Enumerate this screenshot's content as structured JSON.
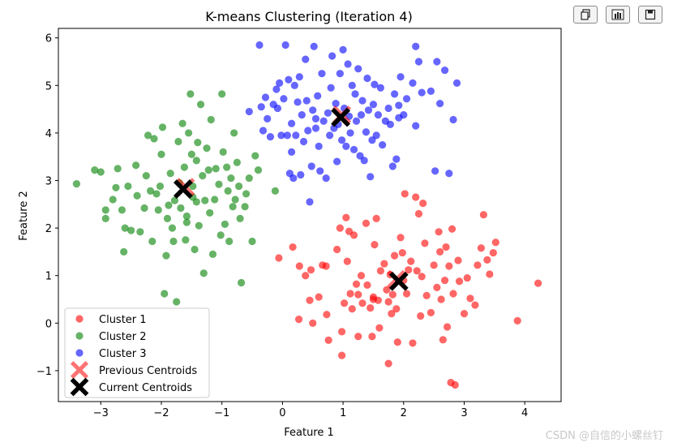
{
  "toolbar": {
    "buttons": [
      {
        "name": "copy-button",
        "icon": "copy-icon"
      },
      {
        "name": "data-button",
        "icon": "bar-chart-icon"
      },
      {
        "name": "save-button",
        "icon": "save-icon"
      }
    ]
  },
  "watermark": "CSDN @自信的小螺丝钉",
  "chart_data": {
    "type": "scatter",
    "title": "K-means Clustering (Iteration 4)",
    "xlabel": "Feature 1",
    "ylabel": "Feature 2",
    "xlim": [
      -3.7,
      4.6
    ],
    "ylim": [
      -1.65,
      6.2
    ],
    "xticks": [
      -3,
      -2,
      -1,
      0,
      1,
      2,
      3,
      4
    ],
    "yticks": [
      -1,
      0,
      1,
      2,
      3,
      4,
      5,
      6
    ],
    "grid": false,
    "legend_position": "lower-left",
    "series": [
      {
        "name": "Cluster 1",
        "color": "#ff0000",
        "marker": "circle",
        "points": [
          [
            -0.06,
            1.37
          ],
          [
            0.17,
            1.6
          ],
          [
            0.28,
            1.2
          ],
          [
            0.27,
            0.08
          ],
          [
            0.38,
            1.0
          ],
          [
            0.45,
            0.48
          ],
          [
            0.47,
            1.12
          ],
          [
            0.6,
            0.55
          ],
          [
            0.66,
            1.22
          ],
          [
            0.72,
            1.2
          ],
          [
            0.73,
            0.18
          ],
          [
            0.76,
            -0.36
          ],
          [
            0.9,
            1.55
          ],
          [
            0.95,
            2.0
          ],
          [
            0.98,
            -0.18
          ],
          [
            0.98,
            -0.68
          ],
          [
            1.02,
            0.42
          ],
          [
            1.05,
            2.22
          ],
          [
            1.07,
            1.3
          ],
          [
            1.1,
            1.93
          ],
          [
            1.12,
            0.62
          ],
          [
            1.15,
            0.3
          ],
          [
            1.18,
            1.85
          ],
          [
            1.22,
            0.82
          ],
          [
            1.25,
            0.6
          ],
          [
            1.25,
            -0.28
          ],
          [
            1.3,
            1.0
          ],
          [
            1.32,
            0.42
          ],
          [
            1.38,
            2.1
          ],
          [
            1.4,
            0.8
          ],
          [
            1.45,
            0.32
          ],
          [
            1.48,
            -0.28
          ],
          [
            1.5,
            0.55
          ],
          [
            1.52,
            1.65
          ],
          [
            1.55,
            2.2
          ],
          [
            1.58,
            0.48
          ],
          [
            1.6,
            -0.1
          ],
          [
            1.62,
            1.1
          ],
          [
            1.68,
            1.25
          ],
          [
            1.72,
            0.7
          ],
          [
            1.75,
            0.45
          ],
          [
            1.78,
            1.02
          ],
          [
            1.8,
            0.2
          ],
          [
            1.82,
            0.6
          ],
          [
            1.85,
            1.42
          ],
          [
            1.88,
            0.3
          ],
          [
            1.9,
            -0.4
          ],
          [
            1.95,
            1.8
          ],
          [
            1.98,
            1.48
          ],
          [
            2.0,
            0.9
          ],
          [
            2.02,
            2.72
          ],
          [
            2.05,
            0.62
          ],
          [
            2.08,
            1.12
          ],
          [
            2.12,
            1.3
          ],
          [
            2.15,
            -0.42
          ],
          [
            2.2,
            2.65
          ],
          [
            2.22,
            1.1
          ],
          [
            2.25,
            2.3
          ],
          [
            2.28,
            0.15
          ],
          [
            2.3,
            0.98
          ],
          [
            2.32,
            2.52
          ],
          [
            2.35,
            1.68
          ],
          [
            2.38,
            0.58
          ],
          [
            2.45,
            0.22
          ],
          [
            2.5,
            1.22
          ],
          [
            2.55,
            0.75
          ],
          [
            2.58,
            1.92
          ],
          [
            2.6,
            1.5
          ],
          [
            2.62,
            0.5
          ],
          [
            2.65,
            -0.35
          ],
          [
            2.68,
            0.9
          ],
          [
            2.7,
            1.6
          ],
          [
            2.72,
            -0.08
          ],
          [
            2.75,
            1.2
          ],
          [
            2.78,
            -1.25
          ],
          [
            2.8,
            1.98
          ],
          [
            2.82,
            0.62
          ],
          [
            2.85,
            -1.3
          ],
          [
            2.9,
            1.32
          ],
          [
            2.92,
            0.88
          ],
          [
            3.0,
            0.2
          ],
          [
            3.05,
            0.95
          ],
          [
            3.1,
            0.52
          ],
          [
            3.18,
            0.38
          ],
          [
            3.22,
            1.22
          ],
          [
            3.28,
            1.58
          ],
          [
            3.32,
            2.28
          ],
          [
            3.38,
            1.33
          ],
          [
            3.42,
            1.03
          ],
          [
            3.48,
            1.48
          ],
          [
            3.52,
            1.7
          ],
          [
            3.88,
            0.05
          ],
          [
            4.22,
            0.84
          ],
          [
            1.5,
            0.5
          ],
          [
            1.75,
            -0.85
          ],
          [
            0.5,
            0.0
          ]
        ]
      },
      {
        "name": "Cluster 2",
        "color": "#008000",
        "marker": "circle",
        "points": [
          [
            -3.4,
            2.93
          ],
          [
            -3.1,
            3.22
          ],
          [
            -3.0,
            3.18
          ],
          [
            -2.92,
            2.2
          ],
          [
            -2.92,
            2.38
          ],
          [
            -2.8,
            2.6
          ],
          [
            -2.75,
            2.85
          ],
          [
            -2.72,
            3.25
          ],
          [
            -2.65,
            2.38
          ],
          [
            -2.62,
            1.5
          ],
          [
            -2.55,
            2.88
          ],
          [
            -2.5,
            1.95
          ],
          [
            -2.42,
            3.32
          ],
          [
            -2.4,
            2.68
          ],
          [
            -2.35,
            1.92
          ],
          [
            -2.28,
            2.42
          ],
          [
            -2.25,
            3.1
          ],
          [
            -2.22,
            3.95
          ],
          [
            -2.18,
            2.78
          ],
          [
            -2.15,
            1.72
          ],
          [
            -2.12,
            3.88
          ],
          [
            -2.05,
            2.38
          ],
          [
            -2.02,
            2.88
          ],
          [
            -2.0,
            3.55
          ],
          [
            -1.98,
            4.12
          ],
          [
            -1.95,
            0.62
          ],
          [
            -1.92,
            1.42
          ],
          [
            -1.9,
            2.2
          ],
          [
            -1.88,
            2.48
          ],
          [
            -1.85,
            3.15
          ],
          [
            -1.82,
            2.0
          ],
          [
            -1.8,
            1.72
          ],
          [
            -1.78,
            2.58
          ],
          [
            -1.75,
            0.45
          ],
          [
            -1.72,
            3.82
          ],
          [
            -1.68,
            2.42
          ],
          [
            -1.65,
            4.2
          ],
          [
            -1.62,
            3.28
          ],
          [
            -1.6,
            1.75
          ],
          [
            -1.58,
            2.12
          ],
          [
            -1.55,
            4.0
          ],
          [
            -1.52,
            4.82
          ],
          [
            -1.5,
            3.55
          ],
          [
            -1.48,
            2.88
          ],
          [
            -1.45,
            1.55
          ],
          [
            -1.42,
            2.55
          ],
          [
            -1.4,
            3.8
          ],
          [
            -1.38,
            2.05
          ],
          [
            -1.35,
            4.6
          ],
          [
            -1.32,
            3.1
          ],
          [
            -1.3,
            1.05
          ],
          [
            -1.28,
            2.58
          ],
          [
            -1.25,
            3.68
          ],
          [
            -1.22,
            3.22
          ],
          [
            -1.2,
            2.32
          ],
          [
            -1.18,
            4.28
          ],
          [
            -1.15,
            1.45
          ],
          [
            -1.12,
            2.6
          ],
          [
            -1.1,
            3.25
          ],
          [
            -1.05,
            2.92
          ],
          [
            -1.02,
            1.85
          ],
          [
            -1.0,
            4.82
          ],
          [
            -0.98,
            3.6
          ],
          [
            -0.95,
            2.08
          ],
          [
            -0.92,
            3.28
          ],
          [
            -0.9,
            2.78
          ],
          [
            -0.88,
            1.72
          ],
          [
            -0.85,
            3.05
          ],
          [
            -0.82,
            2.45
          ],
          [
            -0.8,
            4.0
          ],
          [
            -0.78,
            2.6
          ],
          [
            -0.75,
            3.38
          ],
          [
            -0.72,
            2.88
          ],
          [
            -0.7,
            2.2
          ],
          [
            -0.68,
            0.85
          ],
          [
            -0.62,
            2.45
          ],
          [
            -0.6,
            2.72
          ],
          [
            -0.55,
            3.05
          ],
          [
            -0.5,
            1.72
          ],
          [
            -0.45,
            3.52
          ],
          [
            -0.4,
            3.22
          ],
          [
            -0.12,
            2.78
          ],
          [
            -1.58,
            2.25
          ],
          [
            -1.48,
            2.65
          ],
          [
            -2.6,
            2.0
          ],
          [
            -2.08,
            2.72
          ],
          [
            -1.7,
            2.95
          ],
          [
            -1.42,
            3.42
          ]
        ]
      },
      {
        "name": "Cluster 3",
        "color": "#0000ff",
        "marker": "circle",
        "points": [
          [
            -0.55,
            4.45
          ],
          [
            -0.38,
            5.85
          ],
          [
            -0.35,
            4.55
          ],
          [
            -0.32,
            4.05
          ],
          [
            -0.28,
            4.75
          ],
          [
            -0.25,
            4.3
          ],
          [
            -0.2,
            3.92
          ],
          [
            -0.15,
            4.6
          ],
          [
            -0.1,
            4.92
          ],
          [
            -0.08,
            4.52
          ],
          [
            -0.05,
            5.05
          ],
          [
            -0.02,
            3.95
          ],
          [
            0.02,
            4.72
          ],
          [
            0.05,
            5.85
          ],
          [
            0.08,
            3.95
          ],
          [
            0.1,
            5.12
          ],
          [
            0.12,
            3.15
          ],
          [
            0.15,
            4.2
          ],
          [
            0.18,
            3.05
          ],
          [
            0.2,
            5.0
          ],
          [
            0.22,
            3.95
          ],
          [
            0.25,
            4.65
          ],
          [
            0.28,
            5.18
          ],
          [
            0.3,
            3.12
          ],
          [
            0.32,
            4.38
          ],
          [
            0.35,
            3.82
          ],
          [
            0.38,
            5.55
          ],
          [
            0.4,
            4.68
          ],
          [
            0.42,
            4.05
          ],
          [
            0.45,
            2.55
          ],
          [
            0.48,
            3.3
          ],
          [
            0.5,
            4.48
          ],
          [
            0.52,
            5.82
          ],
          [
            0.55,
            4.1
          ],
          [
            0.58,
            4.78
          ],
          [
            0.6,
            3.72
          ],
          [
            0.62,
            3.2
          ],
          [
            0.65,
            5.25
          ],
          [
            0.68,
            4.25
          ],
          [
            0.72,
            3.05
          ],
          [
            0.75,
            4.42
          ],
          [
            0.78,
            3.95
          ],
          [
            0.8,
            4.95
          ],
          [
            0.82,
            5.62
          ],
          [
            0.85,
            4.1
          ],
          [
            0.88,
            4.62
          ],
          [
            0.9,
            3.4
          ],
          [
            0.92,
            4.18
          ],
          [
            0.95,
            5.25
          ],
          [
            0.98,
            3.85
          ],
          [
            1.0,
            5.75
          ],
          [
            1.02,
            4.52
          ],
          [
            1.05,
            3.72
          ],
          [
            1.08,
            5.45
          ],
          [
            1.1,
            4.35
          ],
          [
            1.12,
            4.0
          ],
          [
            1.15,
            5.0
          ],
          [
            1.18,
            3.65
          ],
          [
            1.2,
            4.82
          ],
          [
            1.22,
            4.25
          ],
          [
            1.25,
            5.35
          ],
          [
            1.28,
            3.52
          ],
          [
            1.3,
            4.38
          ],
          [
            1.32,
            4.68
          ],
          [
            1.35,
            3.42
          ],
          [
            1.38,
            4.02
          ],
          [
            1.4,
            5.15
          ],
          [
            1.42,
            4.48
          ],
          [
            1.45,
            3.08
          ],
          [
            1.48,
            3.85
          ],
          [
            1.5,
            4.6
          ],
          [
            1.52,
            5.02
          ],
          [
            1.55,
            3.95
          ],
          [
            1.58,
            4.38
          ],
          [
            1.62,
            4.95
          ],
          [
            1.65,
            3.75
          ],
          [
            1.7,
            4.25
          ],
          [
            1.75,
            4.52
          ],
          [
            1.78,
            4.18
          ],
          [
            1.82,
            3.3
          ],
          [
            1.85,
            4.82
          ],
          [
            1.88,
            3.45
          ],
          [
            1.92,
            4.58
          ],
          [
            1.95,
            5.18
          ],
          [
            2.0,
            4.38
          ],
          [
            2.05,
            4.72
          ],
          [
            2.15,
            5.05
          ],
          [
            2.2,
            4.15
          ],
          [
            2.25,
            5.5
          ],
          [
            2.3,
            4.85
          ],
          [
            2.45,
            4.88
          ],
          [
            2.55,
            5.5
          ],
          [
            2.6,
            4.62
          ],
          [
            2.68,
            5.32
          ],
          [
            2.75,
            3.15
          ],
          [
            2.82,
            4.28
          ],
          [
            2.88,
            5.05
          ],
          [
            2.52,
            3.2
          ],
          [
            2.2,
            5.82
          ],
          [
            1.92,
            4.32
          ],
          [
            0.55,
            4.3
          ],
          [
            0.15,
            3.6
          ]
        ]
      }
    ],
    "centroids": {
      "previous": {
        "name": "Previous Centroids",
        "color": "#ff0000",
        "marker": "x",
        "points": [
          [
            1.88,
            0.92
          ],
          [
            -1.6,
            2.86
          ],
          [
            0.98,
            4.38
          ]
        ]
      },
      "current": {
        "name": "Current Centroids",
        "color": "#000000",
        "marker": "x",
        "points": [
          [
            1.92,
            0.88
          ],
          [
            -1.64,
            2.82
          ],
          [
            0.96,
            4.33
          ]
        ]
      }
    }
  }
}
